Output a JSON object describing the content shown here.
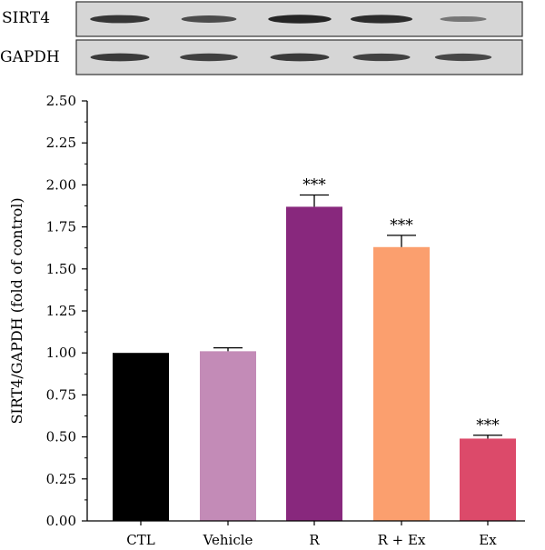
{
  "blot": {
    "rows": [
      {
        "label": "SIRT4",
        "band_intensity": [
          0.8,
          0.65,
          0.92,
          0.88,
          0.35
        ]
      },
      {
        "label": "GAPDH",
        "band_intensity": [
          0.78,
          0.74,
          0.78,
          0.72,
          0.7
        ]
      }
    ],
    "colors": {
      "background": "#d6d6d6",
      "band": "#1a1a1a"
    }
  },
  "chart_data": {
    "type": "bar",
    "title": "",
    "xlabel": "",
    "ylabel": "SIRT4/GAPDH (fold of control)",
    "categories": [
      "CTL",
      "Vehicle",
      "R",
      "R + Ex",
      "Ex"
    ],
    "values": [
      1.0,
      1.01,
      1.87,
      1.63,
      0.49
    ],
    "errors": [
      0.0,
      0.02,
      0.07,
      0.07,
      0.02
    ],
    "significance": [
      "",
      "",
      "***",
      "***",
      "***"
    ],
    "colors": [
      "#000000",
      "#c38bb7",
      "#88287d",
      "#fb9f6e",
      "#dc4a6a"
    ],
    "ylim": [
      0,
      2.5
    ],
    "yticks": [
      "0.00",
      "0.25",
      "0.50",
      "0.75",
      "1.00",
      "1.25",
      "1.50",
      "1.75",
      "2.00",
      "2.25",
      "2.50"
    ],
    "grid": false,
    "legend": "none"
  }
}
